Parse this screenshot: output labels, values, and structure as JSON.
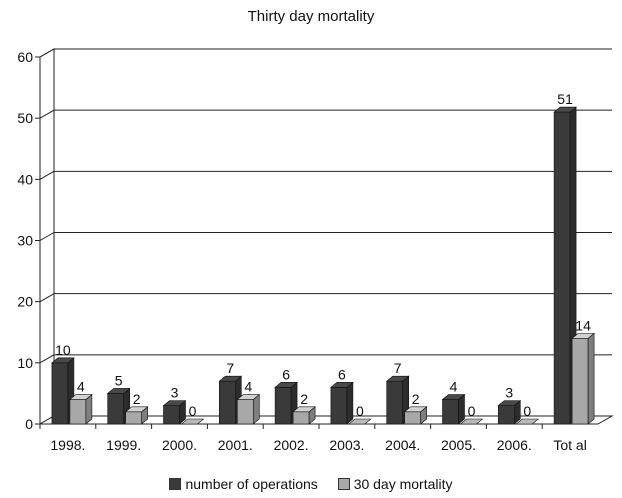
{
  "chart_data": {
    "type": "bar",
    "title": "Thirty day mortality",
    "categories": [
      "1998.",
      "1999.",
      "2000.",
      "2001.",
      "2002.",
      "2003.",
      "2004.",
      "2005.",
      "2006.",
      "Tot al"
    ],
    "series": [
      {
        "name": "number of operations",
        "values": [
          10,
          5,
          3,
          7,
          6,
          6,
          7,
          4,
          3,
          51
        ],
        "color": "#3a3a3a"
      },
      {
        "name": "30 day mortality",
        "values": [
          4,
          2,
          0,
          4,
          2,
          0,
          2,
          0,
          0,
          14
        ],
        "color": "#a8a8a8"
      }
    ],
    "ylim": [
      0,
      60
    ],
    "yticks": [
      0,
      10,
      20,
      30,
      40,
      50,
      60
    ],
    "grid": true,
    "legend_position": "bottom",
    "style": "3d-bar"
  }
}
